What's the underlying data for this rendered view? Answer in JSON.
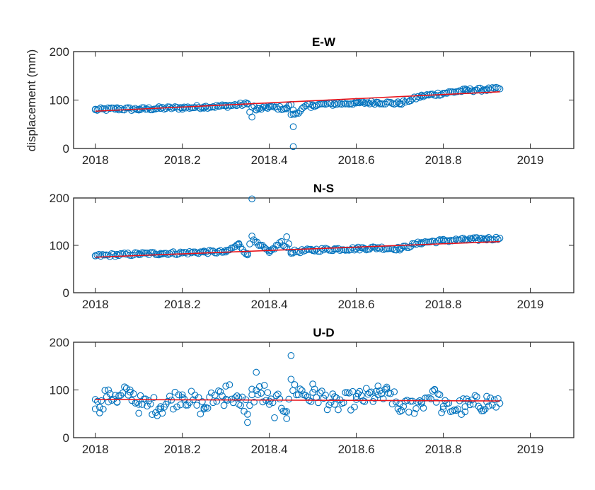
{
  "colors": {
    "marker": "#0072BD",
    "trend": "#E8141B",
    "axis": "#262626"
  },
  "ylabel": "displacement (mm)",
  "chart_data": [
    {
      "type": "scatter",
      "title": "E-W",
      "xlim": [
        2017.95,
        2019.1
      ],
      "ylim": [
        0,
        200
      ],
      "xticks": [
        2018,
        2018.2,
        2018.4,
        2018.6,
        2018.8,
        2019
      ],
      "xtick_labels": [
        "2018",
        "2018.2",
        "2018.4",
        "2018.6",
        "2018.8",
        "2019"
      ],
      "yticks": [
        0,
        100,
        200
      ],
      "ytick_labels": [
        "0",
        "100",
        "200"
      ],
      "series": [
        {
          "role": "observations",
          "marker": "circle",
          "points": [
            [
              2018.0,
              80
            ],
            [
              2018.05,
              82
            ],
            [
              2018.1,
              81
            ],
            [
              2018.15,
              83
            ],
            [
              2018.2,
              84
            ],
            [
              2018.25,
              86
            ],
            [
              2018.3,
              88
            ],
            [
              2018.35,
              92
            ],
            [
              2018.36,
              65
            ],
            [
              2018.37,
              80
            ],
            [
              2018.4,
              86
            ],
            [
              2018.44,
              82
            ],
            [
              2018.45,
              70
            ],
            [
              2018.455,
              45
            ],
            [
              2018.455,
              4
            ],
            [
              2018.5,
              90
            ],
            [
              2018.55,
              92
            ],
            [
              2018.6,
              94
            ],
            [
              2018.65,
              95
            ],
            [
              2018.7,
              93
            ],
            [
              2018.75,
              108
            ],
            [
              2018.8,
              114
            ],
            [
              2018.85,
              120
            ],
            [
              2018.9,
              122
            ],
            [
              2018.93,
              123
            ]
          ]
        },
        {
          "role": "trend",
          "line": [
            [
              2018.0,
              77
            ],
            [
              2018.93,
              117
            ]
          ]
        }
      ]
    },
    {
      "type": "scatter",
      "title": "N-S",
      "xlim": [
        2017.95,
        2019.1
      ],
      "ylim": [
        0,
        200
      ],
      "xticks": [
        2018,
        2018.2,
        2018.4,
        2018.6,
        2018.8,
        2019
      ],
      "xtick_labels": [
        "2018",
        "2018.2",
        "2018.4",
        "2018.6",
        "2018.8",
        "2019"
      ],
      "yticks": [
        0,
        100,
        200
      ],
      "ytick_labels": [
        "0",
        "100",
        "200"
      ],
      "series": [
        {
          "role": "observations",
          "marker": "circle",
          "points": [
            [
              2018.0,
              78
            ],
            [
              2018.05,
              80
            ],
            [
              2018.1,
              82
            ],
            [
              2018.15,
              83
            ],
            [
              2018.2,
              84
            ],
            [
              2018.25,
              86
            ],
            [
              2018.3,
              86
            ],
            [
              2018.33,
              102
            ],
            [
              2018.35,
              80
            ],
            [
              2018.36,
              198
            ],
            [
              2018.38,
              100
            ],
            [
              2018.4,
              85
            ],
            [
              2018.44,
              118
            ],
            [
              2018.45,
              86
            ],
            [
              2018.5,
              90
            ],
            [
              2018.55,
              92
            ],
            [
              2018.6,
              93
            ],
            [
              2018.65,
              95
            ],
            [
              2018.7,
              93
            ],
            [
              2018.75,
              106
            ],
            [
              2018.8,
              110
            ],
            [
              2018.85,
              112
            ],
            [
              2018.9,
              114
            ],
            [
              2018.93,
              115
            ]
          ]
        },
        {
          "role": "trend",
          "line": [
            [
              2018.0,
              75
            ],
            [
              2018.93,
              108
            ]
          ]
        }
      ]
    },
    {
      "type": "scatter",
      "title": "U-D",
      "xlim": [
        2017.95,
        2019.1
      ],
      "ylim": [
        0,
        200
      ],
      "xticks": [
        2018,
        2018.2,
        2018.4,
        2018.6,
        2018.8,
        2019
      ],
      "xtick_labels": [
        "2018",
        "2018.2",
        "2018.4",
        "2018.6",
        "2018.8",
        "2019"
      ],
      "yticks": [
        0,
        100,
        200
      ],
      "ytick_labels": [
        "0",
        "100",
        "200"
      ],
      "series": [
        {
          "role": "observations",
          "marker": "circle",
          "points": [
            [
              2018.0,
              80
            ],
            [
              2018.01,
              52
            ],
            [
              2018.03,
              100
            ],
            [
              2018.05,
              75
            ],
            [
              2018.08,
              100
            ],
            [
              2018.1,
              70
            ],
            [
              2018.15,
              65
            ],
            [
              2018.2,
              90
            ],
            [
              2018.25,
              62
            ],
            [
              2018.3,
              108
            ],
            [
              2018.33,
              70
            ],
            [
              2018.35,
              32
            ],
            [
              2018.36,
              90
            ],
            [
              2018.37,
              137
            ],
            [
              2018.4,
              70
            ],
            [
              2018.44,
              40
            ],
            [
              2018.45,
              172
            ],
            [
              2018.5,
              95
            ],
            [
              2018.55,
              70
            ],
            [
              2018.6,
              80
            ],
            [
              2018.65,
              90
            ],
            [
              2018.67,
              106
            ],
            [
              2018.7,
              55
            ],
            [
              2018.75,
              75
            ],
            [
              2018.78,
              100
            ],
            [
              2018.8,
              60
            ],
            [
              2018.85,
              65
            ],
            [
              2018.9,
              75
            ],
            [
              2018.93,
              72
            ]
          ]
        },
        {
          "role": "trend",
          "line": [
            [
              2018.0,
              80
            ],
            [
              2018.93,
              77
            ]
          ]
        }
      ]
    }
  ]
}
